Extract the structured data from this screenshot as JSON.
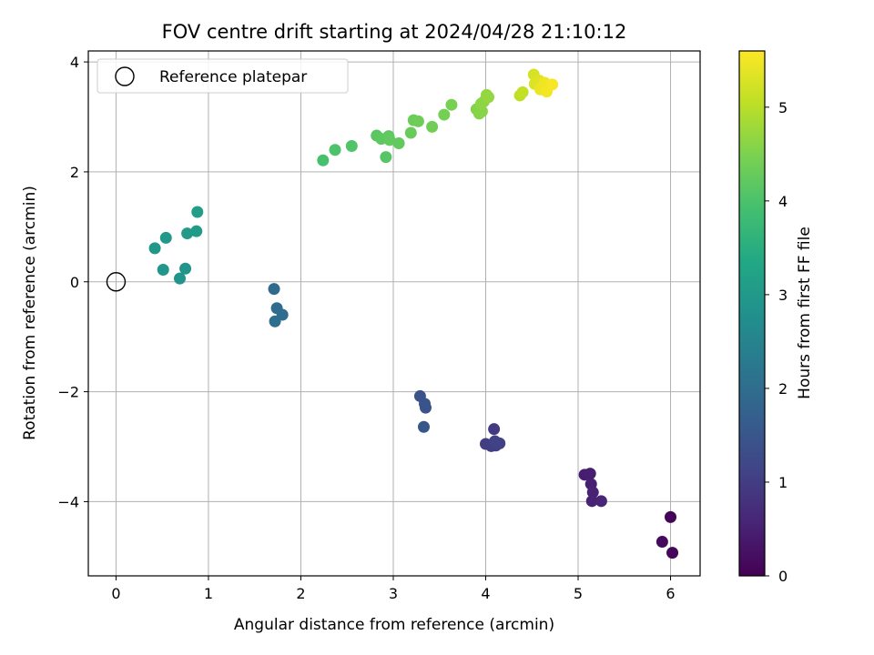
{
  "chart_data": {
    "type": "scatter",
    "title": "FOV centre drift starting at 2024/04/28 21:10:12",
    "xlabel": "Angular distance from reference (arcmin)",
    "ylabel": "Rotation from reference (arcmin)",
    "xlim": [
      -0.3,
      6.32
    ],
    "ylim": [
      -5.35,
      4.2
    ],
    "xticks": [
      0,
      1,
      2,
      3,
      4,
      5,
      6
    ],
    "yticks": [
      -4,
      -2,
      0,
      2,
      4
    ],
    "grid": true,
    "legend": {
      "placement": "top-left",
      "entries": [
        "Reference platepar"
      ]
    },
    "reference_point": {
      "x": 0,
      "y": 0
    },
    "colorbar": {
      "label": "Hours from first FF file",
      "range": [
        0,
        5.6
      ],
      "ticks": [
        0,
        1,
        2,
        3,
        4,
        5
      ],
      "colormap": "viridis"
    },
    "points": [
      {
        "x": 6.0,
        "y": -4.28,
        "h": 0.05
      },
      {
        "x": 6.02,
        "y": -4.93,
        "h": 0.1
      },
      {
        "x": 5.91,
        "y": -4.73,
        "h": 0.15
      },
      {
        "x": 5.07,
        "y": -3.51,
        "h": 0.45
      },
      {
        "x": 5.13,
        "y": -3.49,
        "h": 0.48
      },
      {
        "x": 5.14,
        "y": -3.68,
        "h": 0.5
      },
      {
        "x": 5.16,
        "y": -3.83,
        "h": 0.52
      },
      {
        "x": 5.15,
        "y": -3.99,
        "h": 0.55
      },
      {
        "x": 5.25,
        "y": -3.99,
        "h": 0.58
      },
      {
        "x": 4.09,
        "y": -2.68,
        "h": 0.95
      },
      {
        "x": 4.0,
        "y": -2.95,
        "h": 1.0
      },
      {
        "x": 4.06,
        "y": -2.99,
        "h": 1.02
      },
      {
        "x": 4.11,
        "y": -2.98,
        "h": 1.04
      },
      {
        "x": 4.15,
        "y": -2.94,
        "h": 1.06
      },
      {
        "x": 4.1,
        "y": -2.9,
        "h": 1.08
      },
      {
        "x": 3.29,
        "y": -2.08,
        "h": 1.4
      },
      {
        "x": 3.34,
        "y": -2.22,
        "h": 1.43
      },
      {
        "x": 3.35,
        "y": -2.29,
        "h": 1.46
      },
      {
        "x": 3.33,
        "y": -2.64,
        "h": 1.5
      },
      {
        "x": 1.71,
        "y": -0.13,
        "h": 1.95
      },
      {
        "x": 1.74,
        "y": -0.48,
        "h": 1.98
      },
      {
        "x": 1.8,
        "y": -0.6,
        "h": 2.0
      },
      {
        "x": 1.72,
        "y": -0.72,
        "h": 2.03
      },
      {
        "x": 0.88,
        "y": 1.27,
        "h": 3.1
      },
      {
        "x": 0.87,
        "y": 0.92,
        "h": 3.05
      },
      {
        "x": 0.77,
        "y": 0.88,
        "h": 3.02
      },
      {
        "x": 0.54,
        "y": 0.8,
        "h": 2.98
      },
      {
        "x": 0.42,
        "y": 0.61,
        "h": 2.95
      },
      {
        "x": 0.51,
        "y": 0.22,
        "h": 2.92
      },
      {
        "x": 0.75,
        "y": 0.24,
        "h": 2.9
      },
      {
        "x": 0.69,
        "y": 0.06,
        "h": 2.88
      },
      {
        "x": 2.24,
        "y": 2.21,
        "h": 3.95
      },
      {
        "x": 2.37,
        "y": 2.4,
        "h": 4.0
      },
      {
        "x": 2.55,
        "y": 2.47,
        "h": 4.05
      },
      {
        "x": 2.82,
        "y": 2.66,
        "h": 4.15
      },
      {
        "x": 2.87,
        "y": 2.6,
        "h": 4.18
      },
      {
        "x": 2.95,
        "y": 2.65,
        "h": 4.2
      },
      {
        "x": 2.96,
        "y": 2.58,
        "h": 4.22
      },
      {
        "x": 3.06,
        "y": 2.52,
        "h": 4.24
      },
      {
        "x": 2.92,
        "y": 2.27,
        "h": 4.1
      },
      {
        "x": 3.19,
        "y": 2.71,
        "h": 4.3
      },
      {
        "x": 3.22,
        "y": 2.94,
        "h": 4.33
      },
      {
        "x": 3.27,
        "y": 2.92,
        "h": 4.35
      },
      {
        "x": 3.42,
        "y": 2.82,
        "h": 4.38
      },
      {
        "x": 3.55,
        "y": 3.04,
        "h": 4.42
      },
      {
        "x": 3.63,
        "y": 3.22,
        "h": 4.45
      },
      {
        "x": 3.9,
        "y": 3.14,
        "h": 4.55
      },
      {
        "x": 3.93,
        "y": 3.06,
        "h": 4.58
      },
      {
        "x": 3.96,
        "y": 3.1,
        "h": 4.6
      },
      {
        "x": 3.95,
        "y": 3.24,
        "h": 4.62
      },
      {
        "x": 3.98,
        "y": 3.28,
        "h": 4.65
      },
      {
        "x": 4.01,
        "y": 3.4,
        "h": 4.68
      },
      {
        "x": 4.03,
        "y": 3.36,
        "h": 4.7
      },
      {
        "x": 4.37,
        "y": 3.39,
        "h": 5.05
      },
      {
        "x": 4.4,
        "y": 3.45,
        "h": 5.1
      },
      {
        "x": 4.52,
        "y": 3.77,
        "h": 5.25
      },
      {
        "x": 4.53,
        "y": 3.6,
        "h": 5.3
      },
      {
        "x": 4.58,
        "y": 3.66,
        "h": 5.35
      },
      {
        "x": 4.62,
        "y": 3.55,
        "h": 5.4
      },
      {
        "x": 4.59,
        "y": 3.5,
        "h": 5.45
      },
      {
        "x": 4.64,
        "y": 3.62,
        "h": 5.48
      },
      {
        "x": 4.66,
        "y": 3.46,
        "h": 5.5
      },
      {
        "x": 4.72,
        "y": 3.59,
        "h": 5.55
      }
    ]
  }
}
